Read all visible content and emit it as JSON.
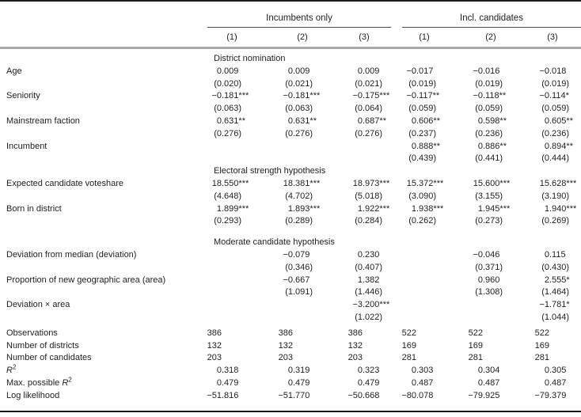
{
  "table": {
    "groups": [
      {
        "label": "Incumbents only",
        "cols": [
          "(1)",
          "(2)",
          "(3)"
        ]
      },
      {
        "label": "Incl. candidates",
        "cols": [
          "(1)",
          "(2)",
          "(3)"
        ]
      }
    ],
    "rows": [
      {
        "type": "section",
        "label": "District nomination"
      },
      {
        "type": "var",
        "label": "Age",
        "coef": [
          "0.009",
          "0.009",
          "0.009",
          "−0.017",
          "−0.016",
          "−0.018"
        ],
        "se": [
          "(0.020)",
          "(0.021)",
          "(0.021)",
          "(0.019)",
          "(0.019)",
          "(0.019)"
        ]
      },
      {
        "type": "var",
        "label": "Seniority",
        "coef": [
          "−0.181***",
          "−0.181***",
          "−0.175***",
          "−0.117**",
          "−0.118**",
          "−0.114*"
        ],
        "se": [
          "(0.063)",
          "(0.063)",
          "(0.064)",
          "(0.059)",
          "(0.059)",
          "(0.059)"
        ]
      },
      {
        "type": "var",
        "label": "Mainstream faction",
        "coef": [
          "0.631**",
          "0.631**",
          "0.687**",
          "0.606**",
          "0.598**",
          "0.605**"
        ],
        "se": [
          "(0.276)",
          "(0.276)",
          "(0.276)",
          "(0.237)",
          "(0.236)",
          "(0.236)"
        ]
      },
      {
        "type": "var",
        "label": "Incumbent",
        "coef": [
          "",
          "",
          "",
          "0.888**",
          "0.886**",
          "0.894**"
        ],
        "se": [
          "",
          "",
          "",
          "(0.439)",
          "(0.441)",
          "(0.444)"
        ]
      },
      {
        "type": "section",
        "label": "Electoral strength hypothesis"
      },
      {
        "type": "var",
        "label": "Expected candidate voteshare",
        "coef": [
          "18.550***",
          "18.381***",
          "18.973***",
          "15.372***",
          "15.600***",
          "15.628***"
        ],
        "se": [
          "(4.648)",
          "(4.702)",
          "(5.018)",
          "(3.090)",
          "(3.155)",
          "(3.190)"
        ]
      },
      {
        "type": "var",
        "label": "Born in district",
        "coef": [
          "1.899***",
          "1.893***",
          "1.922***",
          "1.938***",
          "1.945***",
          "1.940***"
        ],
        "se": [
          "(0.293)",
          "(0.289)",
          "(0.284)",
          "(0.262)",
          "(0.273)",
          "(0.269)"
        ]
      },
      {
        "type": "gap",
        "h": 10
      },
      {
        "type": "section",
        "label": "Moderate candidate hypothesis"
      },
      {
        "type": "var",
        "label": "Deviation from median (deviation)",
        "coef": [
          "",
          "−0.079",
          "0.230",
          "",
          "−0.046",
          "0.115"
        ],
        "se": [
          "",
          "(0.346)",
          "(0.407)",
          "",
          "(0.371)",
          "(0.430)"
        ]
      },
      {
        "type": "var",
        "label": "Proportion of new geographic area (area)",
        "coef": [
          "",
          "−0.667",
          "1.382",
          "",
          "0.960",
          "2.555*"
        ],
        "se": [
          "",
          "(1.091)",
          "(1.446)",
          "",
          "(1.308)",
          "(1.464)"
        ]
      },
      {
        "type": "var",
        "label": "Deviation × area",
        "coef": [
          "",
          "",
          "−3.200***",
          "",
          "",
          "−1.781*"
        ],
        "se": [
          "",
          "",
          "(1.022)",
          "",
          "",
          "(1.044)"
        ]
      },
      {
        "type": "gap",
        "h": 4
      },
      {
        "type": "stat",
        "label": "Observations",
        "values": [
          "386",
          "386",
          "386",
          "522",
          "522",
          "522"
        ]
      },
      {
        "type": "stat",
        "label": "Number of districts",
        "values": [
          "132",
          "132",
          "132",
          "169",
          "169",
          "169"
        ]
      },
      {
        "type": "stat",
        "label": "Number of candidates",
        "values": [
          "203",
          "203",
          "203",
          "281",
          "281",
          "281"
        ]
      },
      {
        "type": "stat",
        "label_pre": "",
        "label_it": "R",
        "label_sup": "2",
        "label": "R2",
        "values": [
          "0.318",
          "0.319",
          "0.323",
          "0.303",
          "0.304",
          "0.305"
        ]
      },
      {
        "type": "stat",
        "label_pre": "Max. possible ",
        "label_it": "R",
        "label_sup": "2",
        "label": "Max. possible R2",
        "values": [
          "0.479",
          "0.479",
          "0.479",
          "0.487",
          "0.487",
          "0.487"
        ]
      },
      {
        "type": "stat",
        "label": "Log likelihood",
        "values": [
          "−51.816",
          "−51.770",
          "−50.668",
          "−80.078",
          "−79.925",
          "−79.379"
        ]
      }
    ]
  },
  "colors": {
    "text": "#1f1f1f",
    "rule_black": "#1a1a1a",
    "rule_gray": "#a9a9a9",
    "group_rule": "#4a4a4a",
    "background": "#ffffff"
  }
}
